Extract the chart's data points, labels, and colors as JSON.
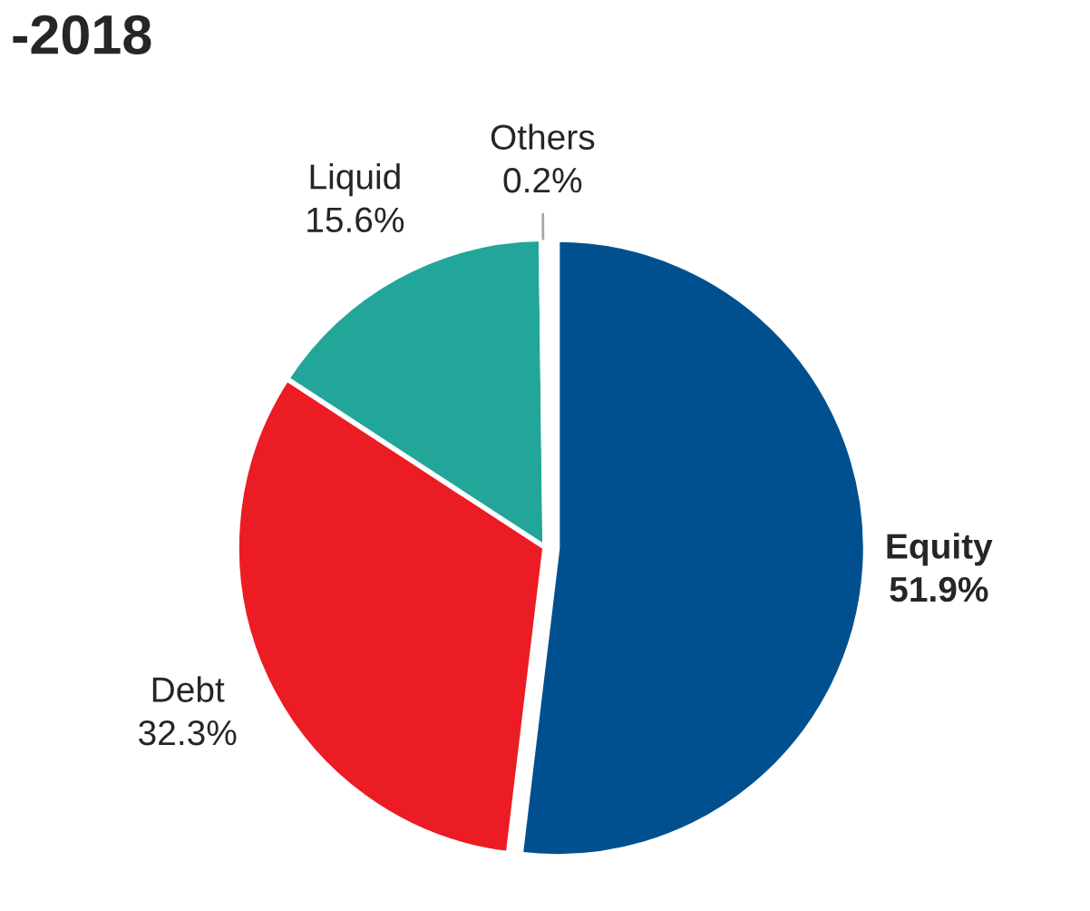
{
  "chart_data": {
    "type": "pie",
    "title": "-2018",
    "categories": [
      "Equity",
      "Debt",
      "Liquid",
      "Others"
    ],
    "values": [
      51.9,
      32.3,
      15.6,
      0.2
    ],
    "colors": [
      "#00508f",
      "#ec1c24",
      "#22a699",
      "#a6a6a6"
    ],
    "value_labels": [
      "51.9%",
      "32.3%",
      "15.6%",
      "0.2%"
    ],
    "legend": false
  }
}
